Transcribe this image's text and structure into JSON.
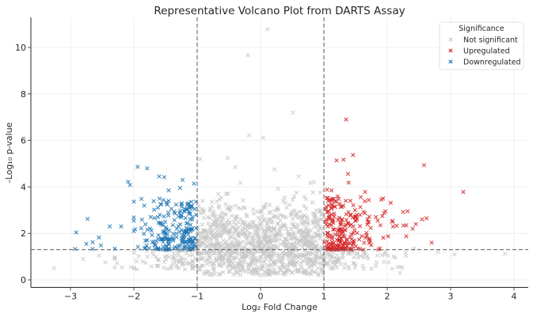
{
  "chart_data": {
    "type": "scatter",
    "title": "Representative Volcano Plot from DARTS Assay",
    "xlabel": "Log₂ Fold Change",
    "ylabel": "-Log₁₀ p-value",
    "xlim": [
      -3.5,
      4.2
    ],
    "ylim": [
      -0.3,
      11.3
    ],
    "xticks": [
      -3,
      -2,
      -1,
      0,
      1,
      2,
      3,
      4
    ],
    "xtick_labels": [
      "−3",
      "−2",
      "−1",
      "0",
      "1",
      "2",
      "3",
      "4"
    ],
    "yticks": [
      0,
      2,
      4,
      6,
      8,
      10
    ],
    "ytick_labels": [
      "0",
      "2",
      "4",
      "6",
      "8",
      "10"
    ],
    "grid": true,
    "marker": "x",
    "thresholds": {
      "fold_change": [
        -1,
        1
      ],
      "p_value_neglog10": 1.3
    },
    "legend": {
      "title": "Significance",
      "placement": "top-right",
      "entries": [
        {
          "label": "Not significant",
          "color": "#c8c8c8"
        },
        {
          "label": "Upregulated",
          "color": "#d62728"
        },
        {
          "label": "Downregulated",
          "color": "#1f77b4"
        }
      ]
    },
    "series": [
      {
        "name": "Not significant",
        "color": "#c8c8c8",
        "points": [
          [
            0.11,
            10.78
          ],
          [
            -0.2,
            9.66
          ],
          [
            0.51,
            7.2
          ],
          [
            -0.18,
            6.22
          ],
          [
            0.04,
            6.12
          ],
          [
            -0.95,
            5.2
          ],
          [
            -0.52,
            5.25
          ],
          [
            -0.4,
            4.85
          ],
          [
            0.22,
            4.75
          ],
          [
            0.6,
            4.45
          ],
          [
            -3.26,
            0.5
          ],
          [
            3.86,
            1.12
          ],
          [
            3.06,
            1.09
          ],
          [
            2.2,
            0.3
          ],
          [
            -0.8,
            0.2
          ],
          [
            -2.05,
            0.55
          ],
          [
            -2.45,
            0.75
          ],
          [
            1.83,
            0.75
          ],
          [
            2.42,
            1.35
          ],
          [
            2.1,
            1.0
          ],
          [
            -2.55,
            1.05
          ],
          [
            -2.8,
            0.9
          ],
          [
            -1.95,
            0.45
          ],
          [
            2.8,
            1.2
          ],
          [
            1.75,
            0.48
          ]
        ],
        "cloud": {
          "count": 1100,
          "x_range": [
            -1.0,
            1.0
          ],
          "y_center": 1.55,
          "y_spread": 0.85,
          "seed": 7
        },
        "cloud_fringe": {
          "count": 170,
          "x_range": [
            -2.3,
            2.6
          ],
          "y_max": 1.3,
          "seed": 11
        }
      },
      {
        "name": "Upregulated",
        "color": "#d62728",
        "points": [
          [
            1.35,
            6.9
          ],
          [
            2.58,
            4.93
          ],
          [
            3.2,
            3.78
          ],
          [
            1.46,
            5.37
          ],
          [
            1.2,
            5.14
          ],
          [
            1.31,
            5.17
          ],
          [
            1.38,
            4.56
          ],
          [
            1.39,
            4.18
          ],
          [
            1.65,
            3.78
          ],
          [
            1.05,
            3.88
          ],
          [
            1.12,
            3.85
          ],
          [
            2.25,
            2.92
          ],
          [
            2.32,
            2.95
          ],
          [
            1.97,
            2.95
          ],
          [
            1.95,
            2.88
          ],
          [
            2.4,
            2.2
          ],
          [
            2.55,
            2.6
          ],
          [
            2.62,
            2.65
          ],
          [
            2.7,
            1.6
          ],
          [
            2.45,
            2.4
          ],
          [
            2.3,
            2.35
          ],
          [
            1.85,
            2.55
          ],
          [
            1.82,
            2.7
          ]
        ],
        "cloud": {
          "count": 230,
          "x_range": [
            1.0,
            2.3
          ],
          "y_min": 1.3,
          "y_max": 3.6,
          "seed": 21
        }
      },
      {
        "name": "Downregulated",
        "color": "#1f77b4",
        "points": [
          [
            -1.94,
            4.86
          ],
          [
            -1.79,
            4.8
          ],
          [
            -2.09,
            4.22
          ],
          [
            -2.06,
            4.08
          ],
          [
            -2.73,
            2.62
          ],
          [
            -2.91,
            2.04
          ],
          [
            -2.93,
            1.33
          ],
          [
            -2.65,
            1.62
          ],
          [
            -2.55,
            1.82
          ],
          [
            -2.38,
            2.3
          ],
          [
            -2.2,
            2.3
          ],
          [
            -2.0,
            2.55
          ],
          [
            -2.3,
            1.34
          ],
          [
            -2.65,
            1.33
          ],
          [
            -2.52,
            1.48
          ],
          [
            -2.75,
            1.55
          ],
          [
            -1.6,
            4.45
          ],
          [
            -1.52,
            4.42
          ],
          [
            -1.23,
            4.3
          ],
          [
            -1.05,
            4.14
          ],
          [
            -1.45,
            3.85
          ],
          [
            -1.45,
            3.4
          ],
          [
            -1.88,
            3.48
          ],
          [
            -1.62,
            3.1
          ],
          [
            -1.27,
            3.95
          ]
        ],
        "cloud": {
          "count": 210,
          "x_range": [
            -2.0,
            -1.0
          ],
          "y_min": 1.3,
          "y_max": 3.5,
          "seed": 33
        }
      }
    ]
  }
}
